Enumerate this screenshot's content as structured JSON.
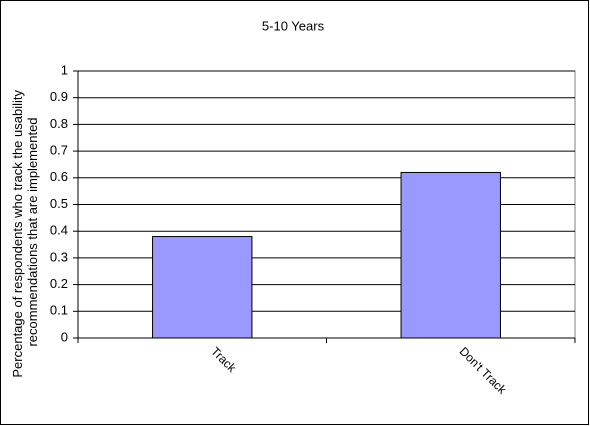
{
  "chart_data": {
    "type": "bar",
    "title": "5-10 Years",
    "ylabel": [
      "Percentage of respondents who track the usability",
      "recommendations that are implemented"
    ],
    "categories": [
      "Track",
      "Don't Track"
    ],
    "values": [
      0.38,
      0.62
    ],
    "color": "#9999ff",
    "ylim": [
      0,
      1
    ],
    "yticks": [
      0,
      0.1,
      0.2,
      0.3,
      0.4,
      0.5,
      0.6,
      0.7,
      0.8,
      0.9,
      1
    ],
    "grid": true
  }
}
